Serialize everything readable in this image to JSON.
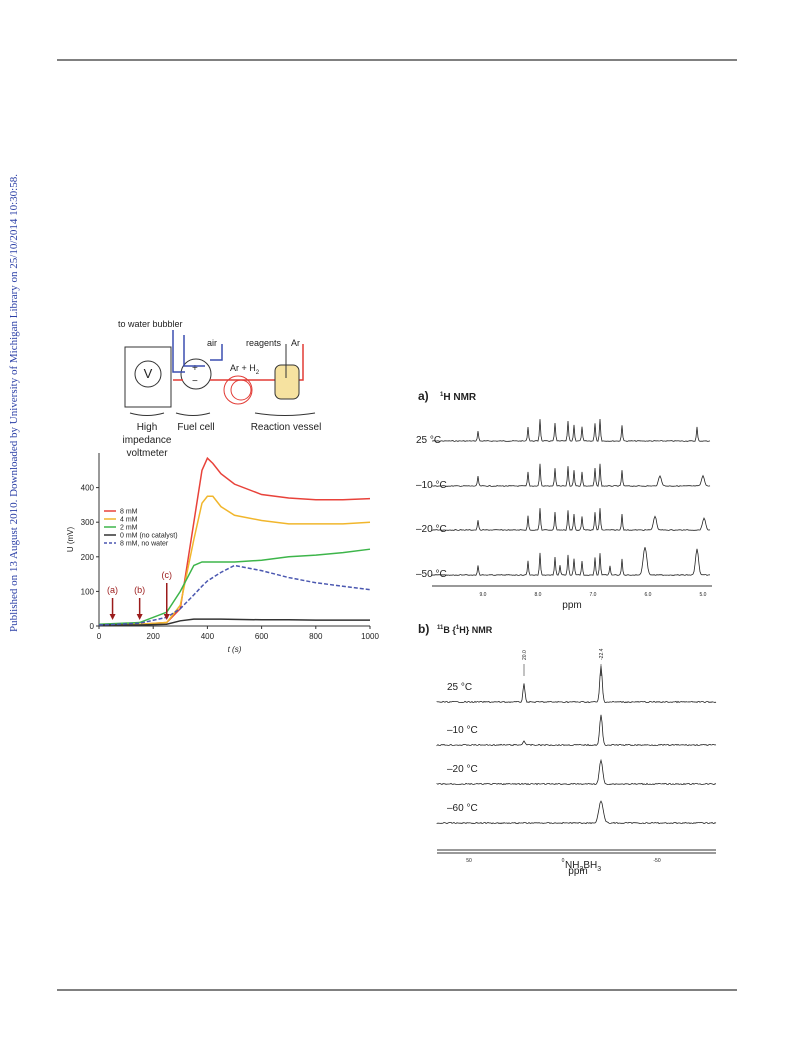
{
  "sidebar": "Published on 13 August 2010. Downloaded by University of Michigan Library on 25/10/2014 10:30:58.",
  "scheme": {
    "to_water_bubbler": "to water bubbler",
    "air": "air",
    "reagents": "reagents",
    "ar": "Ar",
    "v": "V",
    "ar_h2": {
      "text": "Ar + H",
      "sub": "2"
    },
    "plus": "+",
    "minus": "−",
    "voltmeter": [
      "High",
      "impedance",
      "voltmeter"
    ],
    "fuel_cell": "Fuel cell",
    "reaction_vessel": "Reaction vessel"
  },
  "chart_data": {
    "type": "line",
    "xlabel": "t (s)",
    "ylabel": "U (mV)",
    "x": [
      0,
      150,
      250,
      300,
      350,
      380,
      400,
      420,
      450,
      500,
      600,
      700,
      800,
      900,
      1000
    ],
    "series": [
      {
        "name": "8 mM",
        "color": "#e8423a",
        "values": [
          5,
          5,
          10,
          50,
          300,
          450,
          485,
          470,
          440,
          410,
          380,
          370,
          365,
          365,
          368
        ]
      },
      {
        "name": "4 mM",
        "color": "#f1b62c",
        "values": [
          5,
          5,
          10,
          60,
          250,
          355,
          375,
          375,
          345,
          320,
          305,
          295,
          295,
          295,
          300
        ]
      },
      {
        "name": "2 mM",
        "color": "#3db54a",
        "values": [
          5,
          10,
          40,
          100,
          175,
          185,
          185,
          185,
          185,
          185,
          190,
          200,
          205,
          212,
          222
        ]
      },
      {
        "name": "0 mM (no catalyst)",
        "color": "#333333",
        "values": [
          3,
          3,
          5,
          15,
          20,
          20,
          20,
          20,
          20,
          19,
          18,
          18,
          17,
          17,
          17
        ]
      },
      {
        "name": "8 mM, no water",
        "color": "#4a57b0",
        "dashed": true,
        "values": [
          3,
          8,
          25,
          50,
          90,
          115,
          130,
          140,
          155,
          175,
          160,
          140,
          125,
          115,
          105
        ]
      }
    ],
    "xlim": [
      0,
      1000
    ],
    "xticks": [
      0,
      200,
      400,
      600,
      800,
      1000
    ],
    "ylim": [
      0,
      500
    ],
    "yticks": [
      0,
      100,
      200,
      300,
      400
    ],
    "annotations": [
      {
        "text": "(a)",
        "x": 50
      },
      {
        "text": "(b)",
        "x": 150
      },
      {
        "text": "(c)",
        "x": 250
      }
    ],
    "annotation_color": "#9b1b1b",
    "legend": "upper left"
  },
  "nmr_h": {
    "label": "a)",
    "title": {
      "sup": "1",
      "text": "H NMR"
    },
    "temps": [
      "25 °C",
      "–10 °C",
      "–20 °C",
      "–50 °C"
    ],
    "ticks": [
      "9.0",
      "8.0",
      "7.0",
      "6.0",
      "5.0"
    ],
    "xlabel": "ppm"
  },
  "nmr_b": {
    "label": "b)",
    "title": {
      "sup1": "11",
      "t1": "B {",
      "sup2": "1",
      "t2": "H} NMR"
    },
    "peaks": [
      "20.0",
      "-22.4"
    ],
    "temps": [
      "25 °C",
      "–10 °C",
      "–20 °C",
      "–60 °C"
    ],
    "ticks": [
      "50",
      "0",
      "-50"
    ],
    "xlabel": "ppm",
    "compound": {
      "a": "NH",
      "s1": "3",
      "b": "BH",
      "s2": "3"
    }
  }
}
